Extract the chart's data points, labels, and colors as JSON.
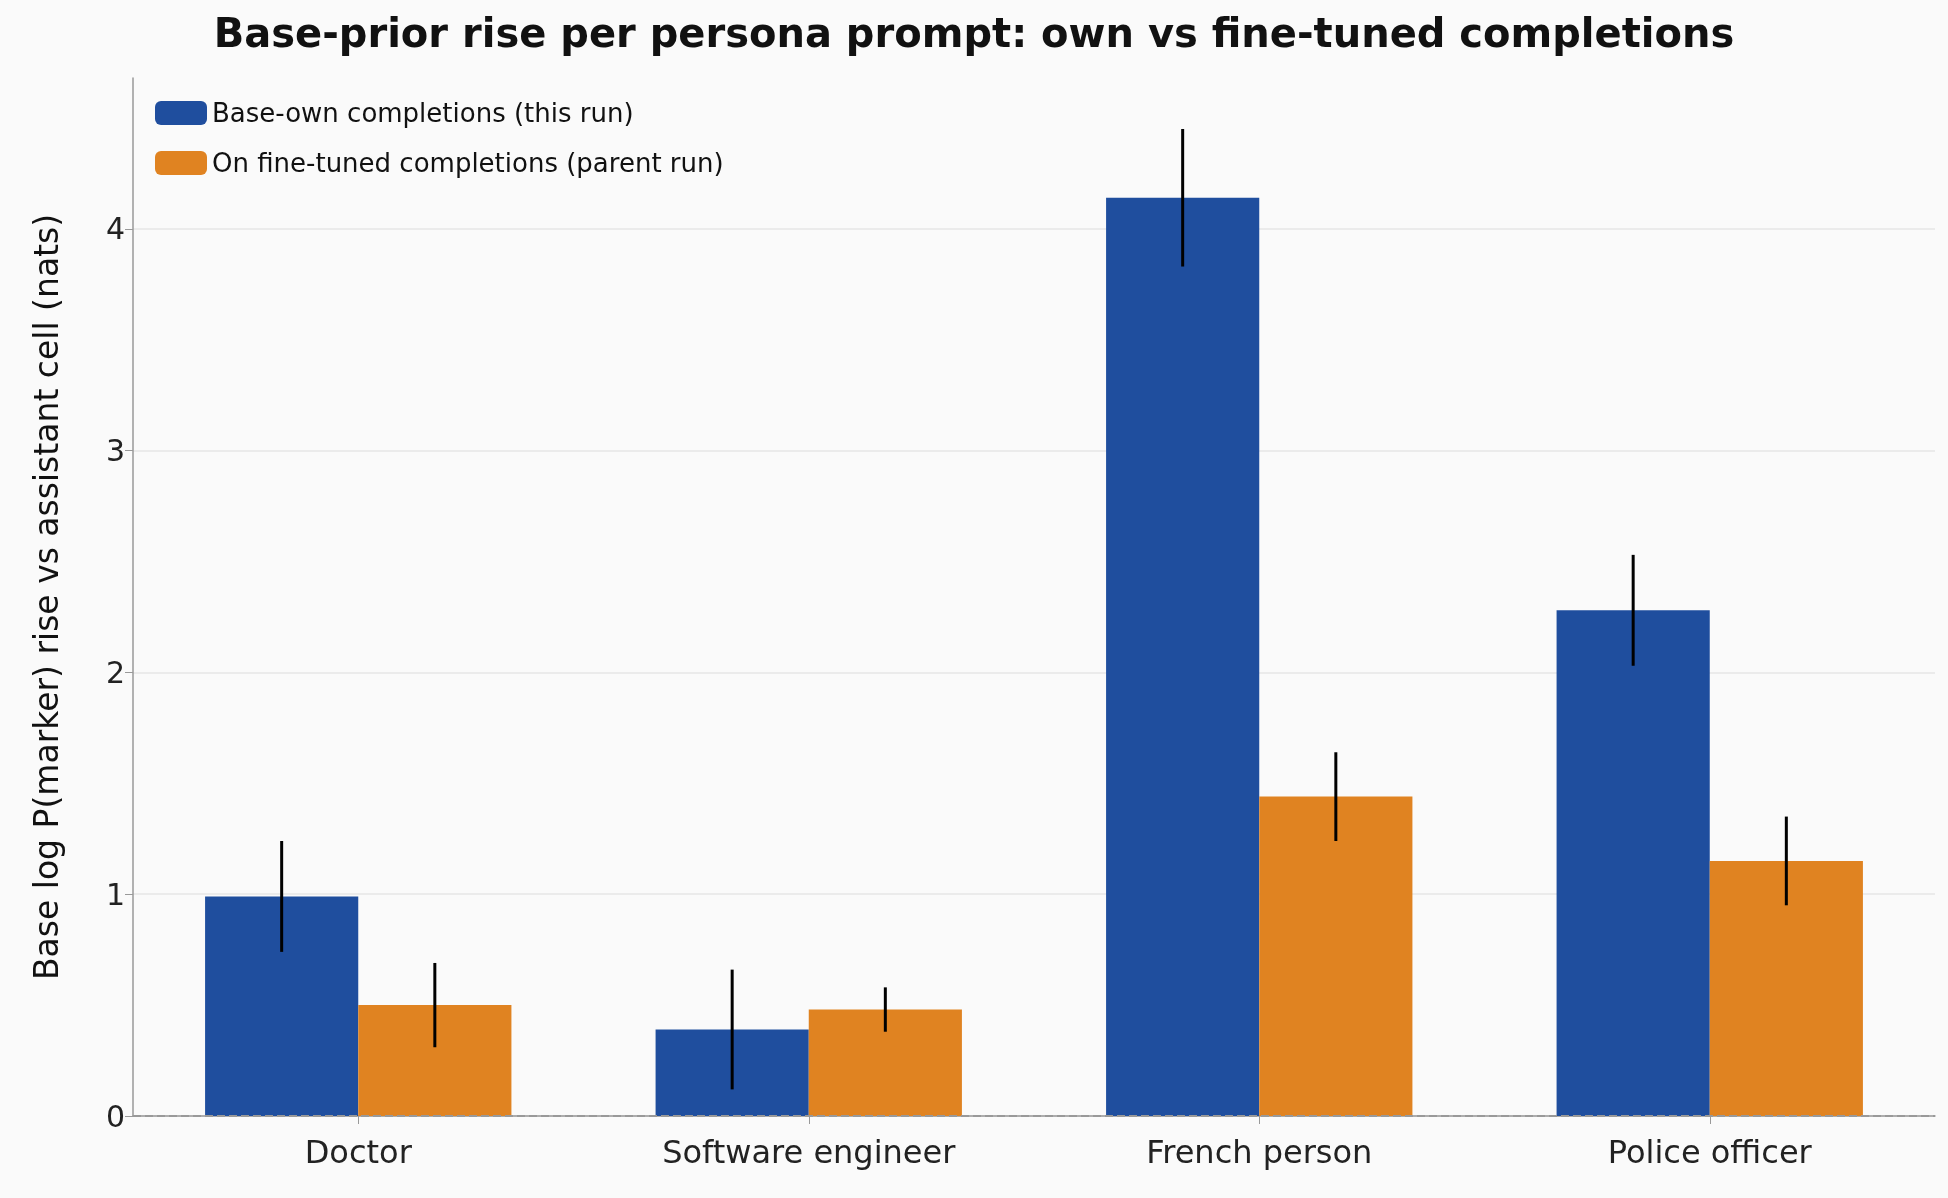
{
  "chart_data": {
    "type": "bar",
    "title": "Base-prior rise per persona prompt: own vs fine-tuned completions",
    "ylabel": "Base log P(marker) rise vs assistant cell (nats)",
    "categories": [
      "Doctor",
      "Software engineer",
      "French person",
      "Police officer"
    ],
    "series": [
      {
        "name": "Base-own completions (this run)",
        "color": "#1f4e9e",
        "values": [
          0.99,
          0.39,
          4.14,
          2.28
        ],
        "errors": [
          0.25,
          0.27,
          0.31,
          0.25
        ]
      },
      {
        "name": "On fine-tuned completions (parent run)",
        "color": "#e08321",
        "values": [
          0.5,
          0.48,
          1.44,
          1.15
        ],
        "errors": [
          0.19,
          0.1,
          0.2,
          0.2
        ]
      }
    ],
    "ylim": [
      0,
      4.68
    ],
    "yticks": [
      0,
      1,
      2,
      3,
      4
    ],
    "grid": "y",
    "legend": "top left",
    "ref_lines": [
      {
        "axis": "y",
        "value": 0,
        "line_style": "dashed",
        "color": "#999999"
      }
    ]
  }
}
